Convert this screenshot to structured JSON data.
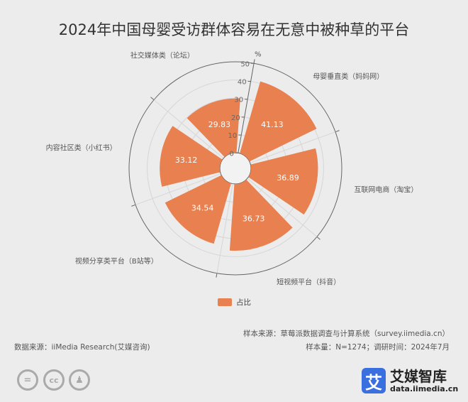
{
  "title": "2024年中国母婴受访群体容易在无意中被种草的平台",
  "chart_data": {
    "type": "bar",
    "polar": true,
    "title": "2024年中国母婴受访群体容易在无意中被种草的平台",
    "categories": [
      "母婴垂直类（妈妈网）",
      "互联网电商（淘宝）",
      "短视频平台（抖音）",
      "视频分享类平台（B站等）",
      "内容社区类（小红书）",
      "社交媒体类（论坛）"
    ],
    "series": [
      {
        "name": "占比",
        "values": [
          41.13,
          36.89,
          36.73,
          34.54,
          33.12,
          29.83
        ]
      }
    ],
    "radial_unit": "%",
    "radial_ticks": [
      "0",
      "10",
      "20",
      "30",
      "40",
      "50"
    ],
    "rlim": [
      0,
      50
    ],
    "legend": "bottom",
    "color": "#e8804f"
  },
  "footer": {
    "source": "数据来源：iiMedia Research(艾媒咨询)",
    "sample_source": "样本来源：草莓派数据调查与计算系统（survey.iimedia.cn）",
    "sample_info": "样本量：N=1274；调研时间：2024年7月"
  },
  "logo": {
    "mark": "艾",
    "name": "艾媒智库",
    "url": "data.iimedia.cn"
  },
  "license_icons": [
    "nd-icon",
    "cc-icon",
    "by-icon"
  ]
}
